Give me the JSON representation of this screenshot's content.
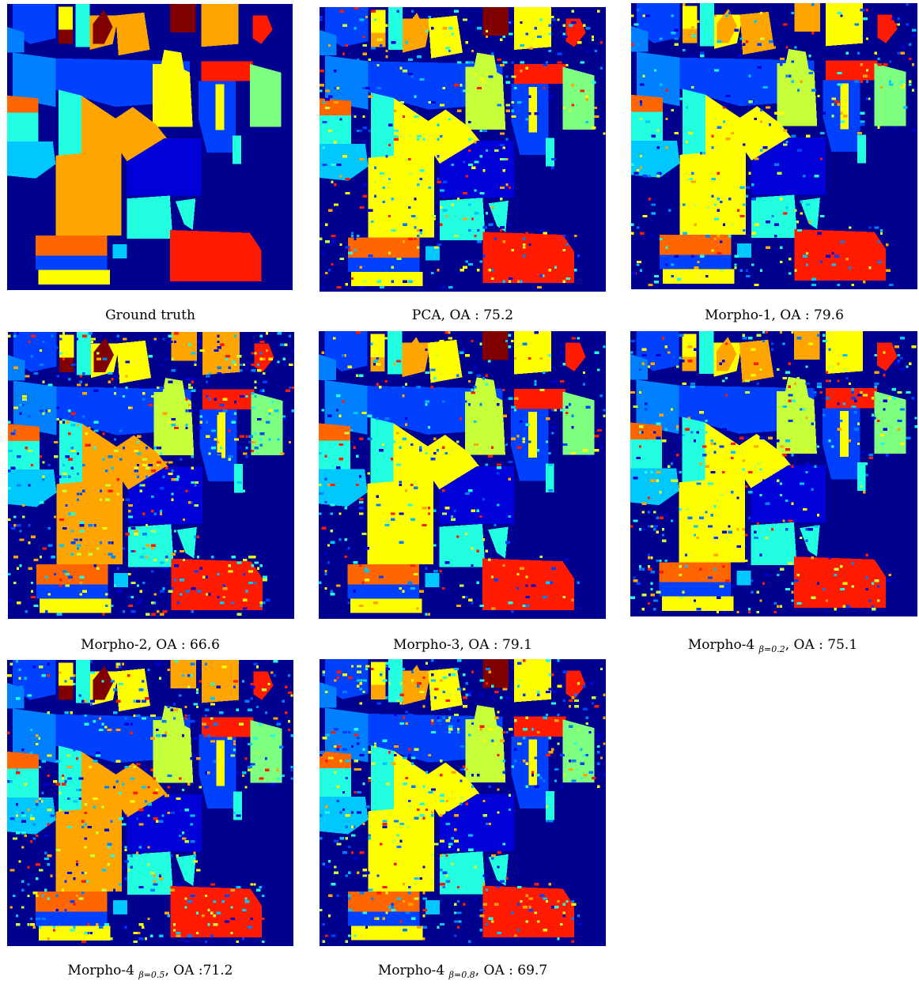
{
  "figure": {
    "palette": {
      "background": "#00008f",
      "c_dark_red": "#800000",
      "c_red": "#ff1a00",
      "c_orange_red": "#ff6600",
      "c_orange": "#ffa500",
      "c_yellow": "#ffff00",
      "c_yellow_green": "#c4ff3a",
      "c_green": "#7fff7f",
      "c_cyan": "#22ffe0",
      "c_light_blue": "#00c8ff",
      "c_blue": "#0080ff",
      "c_mid_blue": "#0040ff",
      "c_deep_blue": "#0000d8"
    },
    "panels": [
      {
        "id": "ground-truth",
        "caption_main": "Ground truth",
        "caption_sub": "",
        "caption_tail": "",
        "noise": 0
      },
      {
        "id": "pca",
        "caption_main": "PCA, OA : 75.2",
        "caption_sub": "",
        "caption_tail": "",
        "noise": 0.22
      },
      {
        "id": "morpho-1",
        "caption_main": "Morpho-1, OA : 79.6",
        "caption_sub": "",
        "caption_tail": "",
        "noise": 0.17
      },
      {
        "id": "morpho-2",
        "caption_main": "Morpho-2, OA : 66.6",
        "caption_sub": "",
        "caption_tail": "",
        "noise": 0.3
      },
      {
        "id": "morpho-3",
        "caption_main": "Morpho-3, OA : 79.1",
        "caption_sub": "",
        "caption_tail": "",
        "noise": 0.18
      },
      {
        "id": "morpho-4-b02",
        "caption_main": "Morpho-4 ",
        "caption_sub": "β=0.2",
        "caption_tail": ", OA : 75.1",
        "noise": 0.23
      },
      {
        "id": "morpho-4-b05",
        "caption_main": "Morpho-4 ",
        "caption_sub": "β=0.5",
        "caption_tail": ", OA :71.2",
        "noise": 0.27
      },
      {
        "id": "morpho-4-b08",
        "caption_main": "Morpho-4 ",
        "caption_sub": "β=0.8",
        "caption_tail": ", OA : 69.7",
        "noise": 0.28
      }
    ]
  }
}
